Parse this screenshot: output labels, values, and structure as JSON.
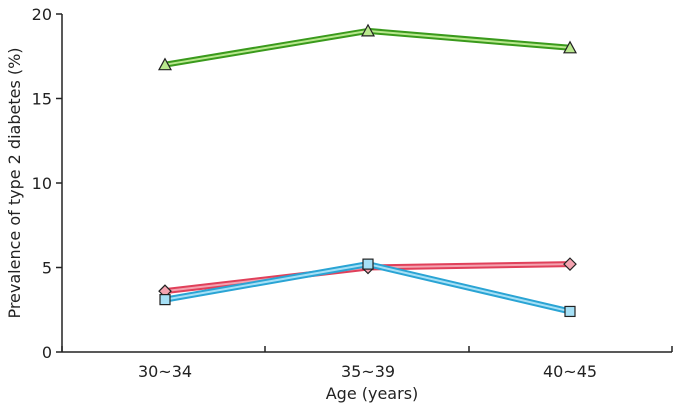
{
  "chart_data": {
    "type": "line",
    "categories": [
      "30~34",
      "35~39",
      "40~45"
    ],
    "xlabel": "Age (years)",
    "ylabel": "Prevalence of type 2 diabetes (%)",
    "ylim": [
      0,
      20
    ],
    "yticks": [
      "0",
      "5",
      "10",
      "15",
      "20"
    ],
    "grid": false,
    "series": [
      {
        "values": [
          17.0,
          19.0,
          18.0
        ],
        "marker": "triangle",
        "color": "#3a9a1c",
        "fill": "#b9e88e"
      },
      {
        "values": [
          3.6,
          5.0,
          5.2
        ],
        "marker": "diamond",
        "color": "#e0405a",
        "fill": "#f4a3b0"
      },
      {
        "values": [
          3.1,
          5.2,
          2.4
        ],
        "marker": "square",
        "color": "#2aa4d4",
        "fill": "#a6e0f6"
      }
    ]
  }
}
